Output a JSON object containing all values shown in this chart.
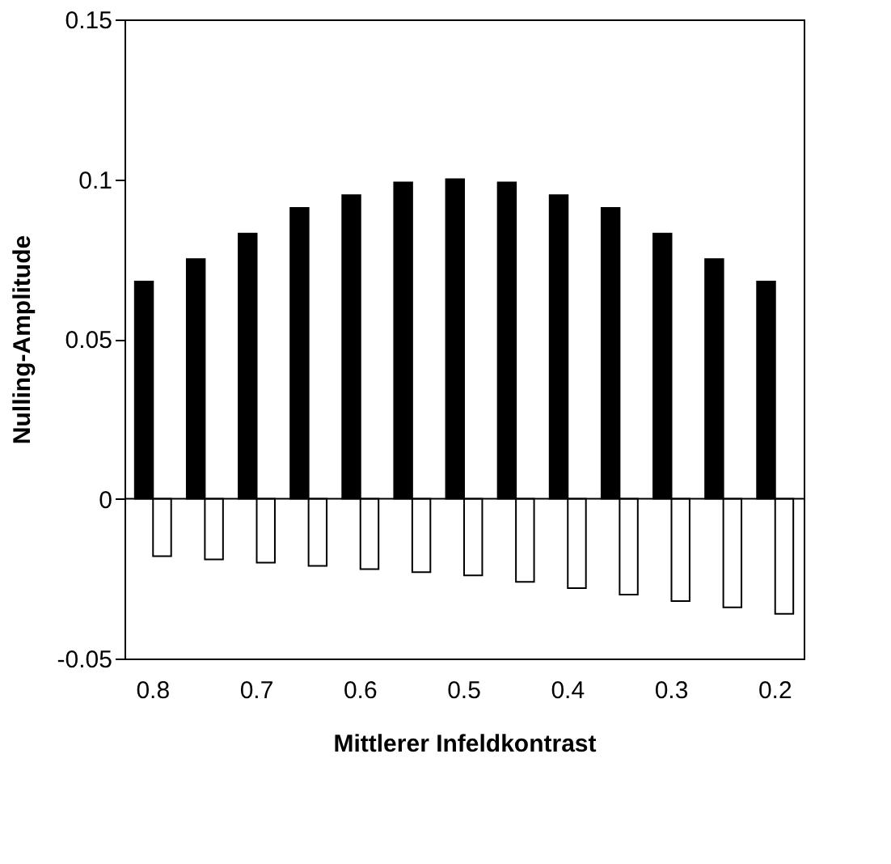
{
  "chart_data": {
    "type": "bar",
    "xlabel": "Mittlerer Infeldkontrast",
    "ylabel": "Nulling-Amplitude",
    "categories": [
      "0.8",
      null,
      "0.7",
      null,
      "0.6",
      null,
      "0.5",
      null,
      "0.4",
      null,
      "0.3",
      null,
      "0.2"
    ],
    "series": [
      {
        "color": "#000000",
        "values": [
          0.068,
          0.075,
          0.083,
          0.091,
          0.095,
          0.099,
          0.1,
          0.099,
          0.095,
          0.091,
          0.083,
          0.075,
          0.068
        ]
      },
      {
        "color": "#ffffff",
        "values": [
          -0.018,
          -0.019,
          -0.02,
          -0.021,
          -0.022,
          -0.023,
          -0.024,
          -0.026,
          -0.028,
          -0.03,
          -0.032,
          -0.034,
          -0.036
        ]
      }
    ],
    "ylim": [
      -0.05,
      0.15
    ],
    "yticks": [
      -0.05,
      0,
      0.05,
      0.1,
      0.15
    ],
    "grid": false,
    "ref_lines": [
      {
        "axis": "y",
        "value": 0
      }
    ]
  }
}
